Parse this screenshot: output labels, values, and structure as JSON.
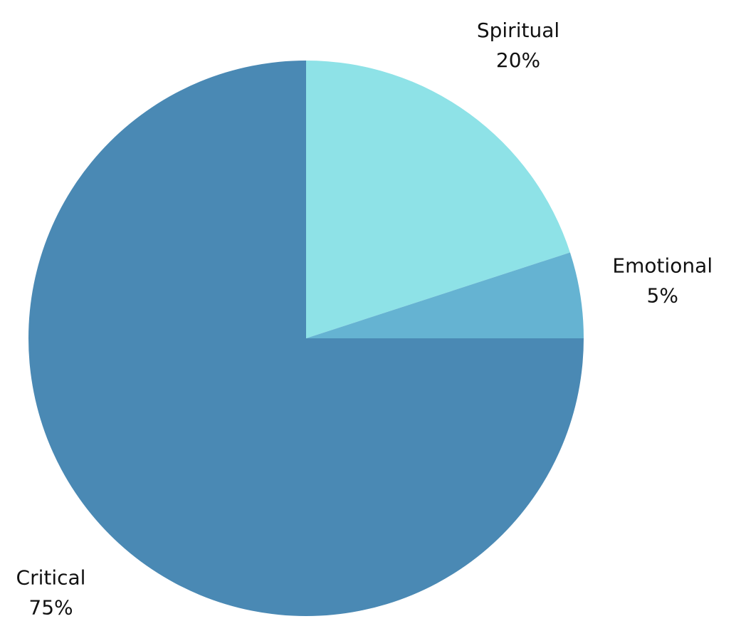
{
  "chart_data": {
    "type": "pie",
    "categories": [
      "Spiritual",
      "Emotional",
      "Critical"
    ],
    "values": [
      20,
      5,
      75
    ],
    "value_labels": [
      "20%",
      "5%",
      "75%"
    ],
    "colors": [
      "#8ee2e7",
      "#65b3d2",
      "#4a89b4"
    ]
  }
}
